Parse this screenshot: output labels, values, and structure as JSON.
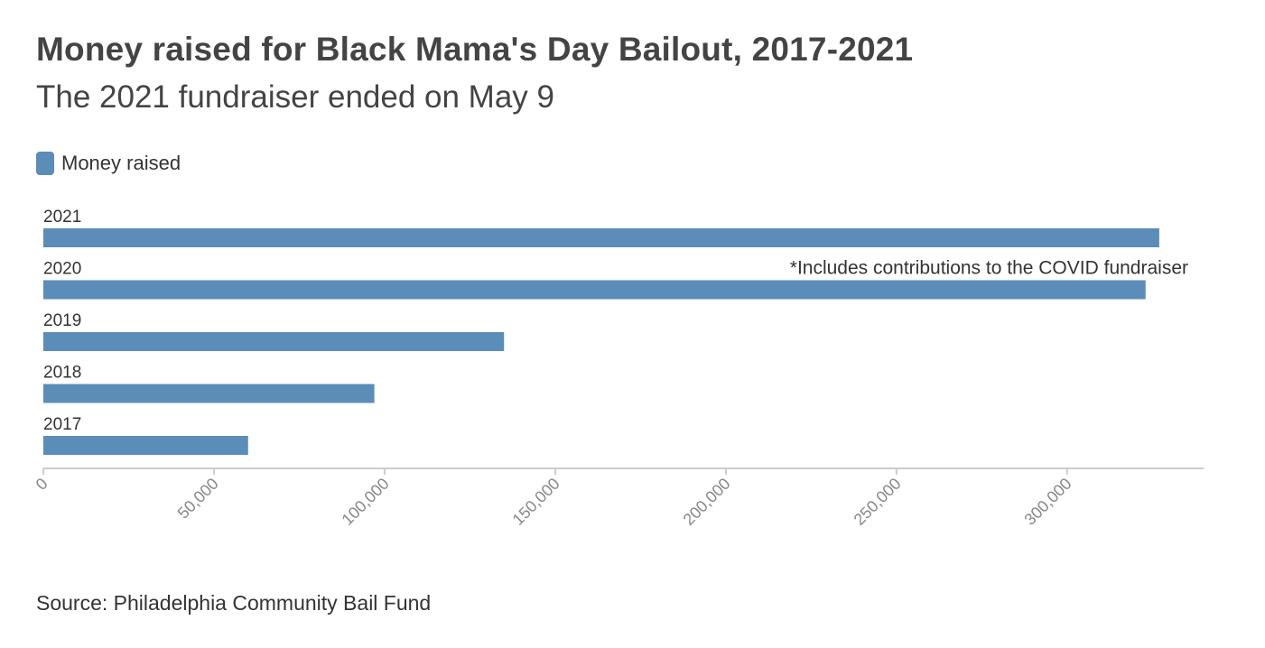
{
  "chart_data": {
    "type": "bar",
    "orientation": "horizontal",
    "title": "Money raised for Black Mama's Day Bailout, 2017-2021",
    "subtitle": "The 2021 fundraiser ended on May 9",
    "categories": [
      "2021",
      "2020",
      "2019",
      "2018",
      "2017"
    ],
    "series": [
      {
        "name": "Money raised",
        "values": [
          327000,
          323000,
          135000,
          97000,
          60000
        ]
      }
    ],
    "xlim": [
      0,
      340000
    ],
    "x_ticks": [
      0,
      50000,
      100000,
      150000,
      200000,
      250000,
      300000
    ],
    "x_tick_labels": [
      "0",
      "50,000",
      "100,000",
      "150,000",
      "200,000",
      "250,000",
      "300,000"
    ],
    "legend_position": "top-left",
    "grid": false,
    "annotation": {
      "category": "2020",
      "text": "*Includes contributions to the COVID fundraiser"
    },
    "source": "Source: Philadelphia Community Bail Fund",
    "colors": {
      "bar": "#5b8db8",
      "axis": "#cccccc",
      "tick_label": "#888888",
      "text": "#333333"
    }
  }
}
